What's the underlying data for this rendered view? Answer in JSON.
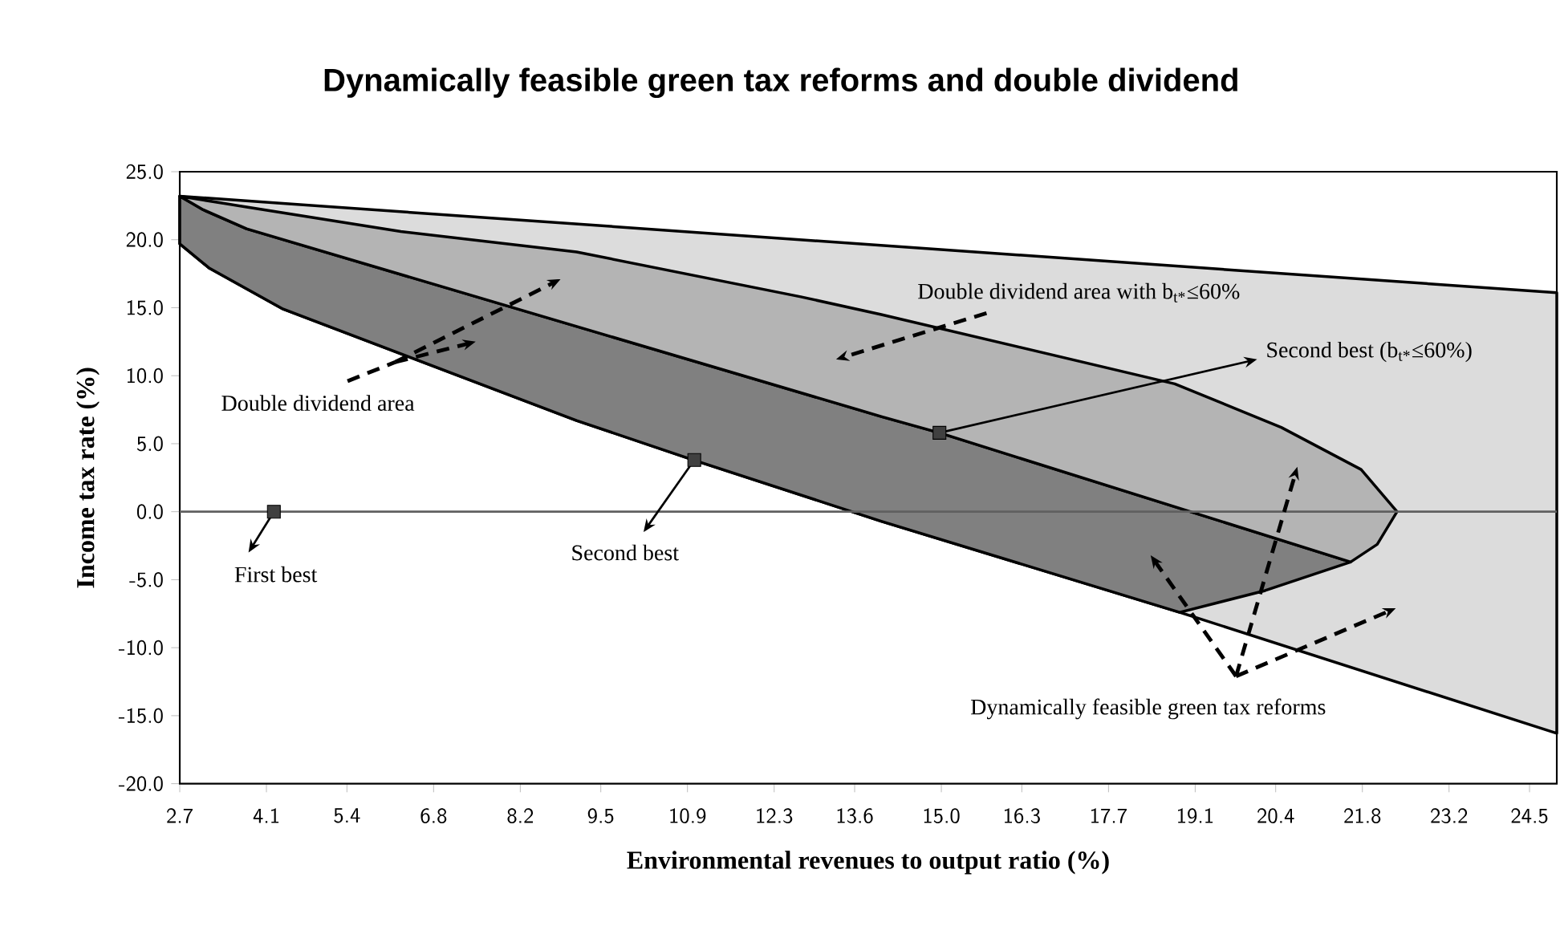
{
  "chart_data": {
    "type": "area",
    "title": "Dynamically feasible green tax reforms and double dividend",
    "xlabel": "Environmental revenues to output ratio (%)",
    "ylabel": "Income tax rate (%)",
    "xlim": [
      2.7,
      24.94
    ],
    "ylim": [
      -20,
      25
    ],
    "xticks": [
      2.7,
      4.1,
      5.4,
      6.8,
      8.2,
      9.5,
      10.9,
      12.3,
      13.6,
      {
        "value": 15.0,
        "label": "15.0"
      },
      16.3,
      17.7,
      19.1,
      20.4,
      21.8,
      23.2,
      24.5
    ],
    "yticks": [
      {
        "value": -20,
        "label": "-20.0"
      },
      {
        "value": -15,
        "label": "-15.0"
      },
      {
        "value": -10,
        "label": "-10.0"
      },
      {
        "value": -5,
        "label": "-5.0"
      },
      {
        "value": 0,
        "label": "0.0"
      },
      {
        "value": 5,
        "label": "5.0"
      },
      {
        "value": 10,
        "label": "10.0"
      },
      {
        "value": 15,
        "label": "15.0"
      },
      {
        "value": 20,
        "label": "20.0"
      },
      {
        "value": 25,
        "label": "25.0"
      }
    ],
    "ref_lines": [
      {
        "axis": "y",
        "value": 0,
        "color": "#606060"
      }
    ],
    "series": [
      {
        "color": "#dcdcdc",
        "x": [
          2.7,
          24.94,
          24.94,
          18.85,
          14.03,
          11.0,
          9.11,
          4.37,
          3.18,
          2.7
        ],
        "values": [
          23.2,
          16.1,
          -16.3,
          -7.4,
          -0.7,
          3.8,
          6.7,
          14.9,
          17.9,
          19.7
        ]
      },
      {
        "color": "#808080",
        "x": [
          2.7,
          3.18,
          4.37,
          9.11,
          11.0,
          14.03,
          18.85,
          20.23,
          21.61,
          14.97,
          14.03,
          3.78,
          3.08,
          2.7
        ],
        "values": [
          19.7,
          17.9,
          14.9,
          6.7,
          3.8,
          -0.7,
          -7.4,
          -5.8,
          -3.7,
          5.8,
          7.0,
          20.8,
          22.2,
          23.2
        ]
      },
      {
        "color": "#b4b4b4",
        "x": [
          2.7,
          3.78,
          6.27,
          9.11,
          12.73,
          14.03,
          18.77,
          20.49,
          21.78,
          22.36,
          22.04,
          21.61,
          14.97,
          14.03,
          3.78,
          3.08,
          2.7
        ],
        "values": [
          23.2,
          22.4,
          20.6,
          19.1,
          15.8,
          14.5,
          9.4,
          6.2,
          3.1,
          0.0,
          -2.4,
          -3.7,
          5.8,
          7.0,
          20.8,
          22.2,
          23.2
        ]
      },
      {
        "type": "scatter",
        "color": "#404040",
        "marker": "square",
        "x": [
          4.22,
          11.01,
          14.97
        ],
        "values": [
          0,
          3.8,
          5.8
        ]
      }
    ],
    "annotations": [
      {
        "text": "First best",
        "x": 4.22,
        "y": 0
      },
      {
        "text": "Second best",
        "x": 11.01,
        "y": 3.8
      },
      {
        "text": "Second best (b$_{t*}$≤60%)",
        "x": 14.97,
        "y": 5.8
      },
      "Double dividend area with b$_{t*}$≤60%",
      "Double dividend area",
      "Dynamically feasible green tax reforms"
    ]
  }
}
